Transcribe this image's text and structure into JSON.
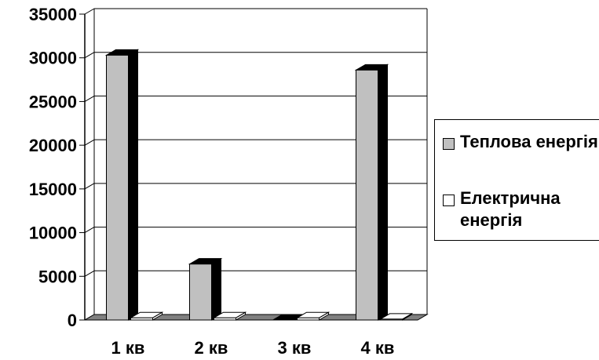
{
  "chart_data": {
    "type": "bar",
    "categories": [
      "1 кв",
      "2 кв",
      "3 кв",
      "4 кв"
    ],
    "series": [
      {
        "name": "Теплова енергія",
        "values": [
          30300,
          6400,
          0,
          28600
        ],
        "color": "#c0c0c0",
        "side_color": "#000000"
      },
      {
        "name": "Електрична енергія",
        "values": [
          250,
          250,
          250,
          100
        ],
        "color": "#ffffff",
        "side_color": "#ffffff"
      }
    ],
    "ylim": [
      0,
      35000
    ],
    "yticks": [
      "0",
      "5000",
      "10000",
      "15000",
      "20000",
      "25000",
      "30000",
      "35000"
    ],
    "grid": true,
    "legend_position": "right",
    "title": "",
    "xlabel": "",
    "ylabel": ""
  }
}
